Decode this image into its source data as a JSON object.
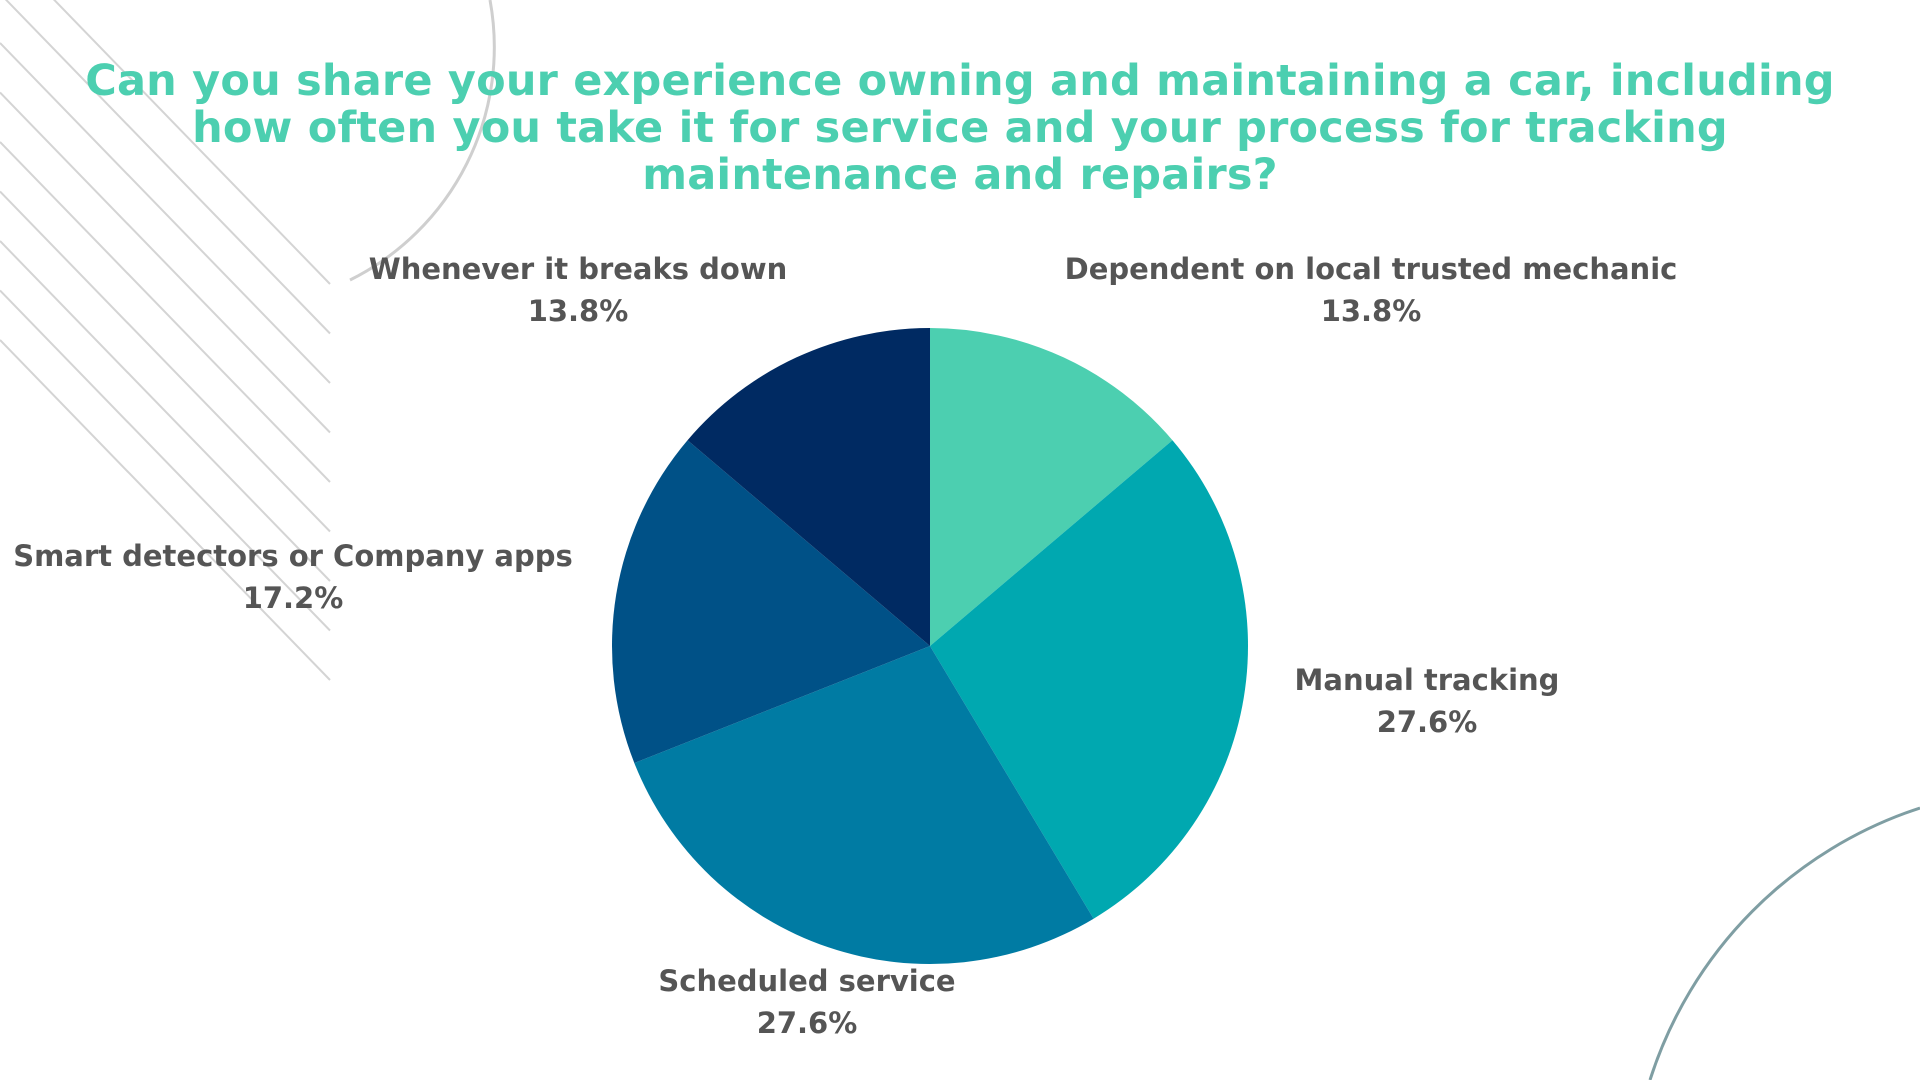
{
  "colors": {
    "background": "#ffffff",
    "title": "#4ccfb0",
    "label_text": "#555555",
    "decor_lines": "#d4d4d4",
    "decor_arc_bottom": "#7f9ea3"
  },
  "chart_data": {
    "type": "pie",
    "title": "Can you share your experience owning and maintaining a car, including how often you take it for service and your process for tracking maintenance and repairs?",
    "slices": [
      {
        "label": "Dependent on local trusted mechanic",
        "value": 13.8,
        "display": "13.8%",
        "color": "#4ccfb0"
      },
      {
        "label": "Manual tracking",
        "value": 27.6,
        "display": "27.6%",
        "color": "#00a8b0"
      },
      {
        "label": "Scheduled service",
        "value": 27.6,
        "display": "27.6%",
        "color": "#007ba3"
      },
      {
        "label": "Smart detectors or Company apps",
        "value": 17.2,
        "display": "17.2%",
        "color": "#005187"
      },
      {
        "label": "Whenever it breaks down",
        "value": 13.8,
        "display": "13.8%",
        "color": "#002a62"
      }
    ],
    "start_angle": "12 o'clock",
    "direction": "clockwise",
    "legend": "none",
    "labels": "outside slices, category name above percentage"
  }
}
